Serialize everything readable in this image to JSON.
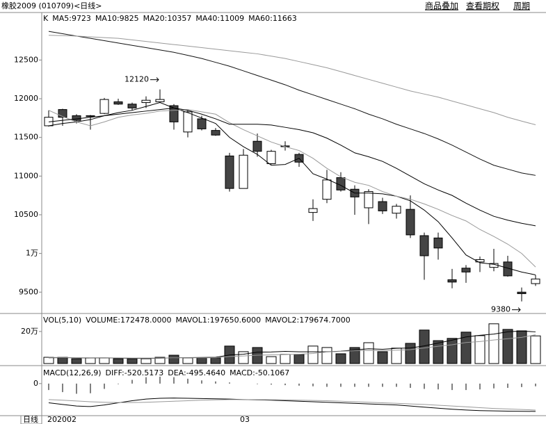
{
  "header": {
    "title": "橡胶2009 (010709)<日线>",
    "links": [
      "商品叠加",
      "查看期权",
      "周期"
    ]
  },
  "footer": {
    "period": "日线"
  },
  "chart_data": [
    {
      "type": "candlestick",
      "title": "K",
      "categories": [
        "202002",
        null,
        null,
        null,
        null,
        null,
        null,
        null,
        null,
        null,
        null,
        null,
        null,
        null,
        "03",
        null,
        null,
        null,
        null,
        null,
        null,
        null,
        null,
        null,
        null,
        null,
        null,
        null,
        null,
        null,
        null,
        null,
        null,
        null,
        null,
        null
      ],
      "open": [
        11650,
        11860,
        11780,
        11770,
        11810,
        11960,
        11930,
        11950,
        11960,
        11910,
        11570,
        11740,
        11590,
        11260,
        10840,
        11450,
        11160,
        11380,
        11280,
        10530,
        10700,
        10980,
        10830,
        10590,
        10670,
        10520,
        10570,
        10230,
        10200,
        9660,
        9810,
        9890,
        9820,
        9890,
        9500,
        9610
      ],
      "high": [
        11850,
        11870,
        11800,
        11790,
        12010,
        12000,
        11950,
        12030,
        12120,
        11930,
        11850,
        11780,
        11620,
        11300,
        11350,
        11550,
        11340,
        11450,
        11300,
        10700,
        11080,
        11050,
        10880,
        10830,
        10720,
        10640,
        10750,
        10270,
        10270,
        9800,
        9850,
        9960,
        10060,
        9970,
        9560,
        9720
      ],
      "low": [
        11640,
        11650,
        11680,
        11600,
        11800,
        11920,
        11850,
        11880,
        11950,
        11600,
        11500,
        11590,
        11520,
        10800,
        10840,
        11250,
        11150,
        11330,
        11120,
        10420,
        10650,
        10800,
        10500,
        10380,
        10510,
        10450,
        10200,
        9660,
        9920,
        9550,
        9620,
        9760,
        9770,
        9700,
        9380,
        9580
      ],
      "close": [
        11760,
        11760,
        11720,
        11780,
        11990,
        11930,
        11880,
        11980,
        11990,
        11700,
        11830,
        11610,
        11530,
        10840,
        11270,
        11320,
        11320,
        11390,
        11180,
        10580,
        10950,
        10820,
        10730,
        10800,
        10550,
        10610,
        10240,
        9970,
        10070,
        9630,
        9760,
        9920,
        9870,
        9710,
        9480,
        9670
      ],
      "up_color": "#ffffff",
      "down_color": "#444444",
      "series": [
        {
          "name": "MA5:9723",
          "color": "#000000",
          "values": [
            11650,
            11680,
            11700,
            11730,
            11780,
            11820,
            11850,
            11900,
            11950,
            11880,
            11820,
            11750,
            11680,
            11500,
            11380,
            11280,
            11140,
            11150,
            11230,
            11030,
            10960,
            10880,
            10780,
            10780,
            10770,
            10740,
            10680,
            10560,
            10410,
            10200,
            9980,
            9880,
            9860,
            9810,
            9760,
            9723
          ]
        },
        {
          "name": "MA10:9825",
          "color": "#999999",
          "values": [
            11850,
            11770,
            11700,
            11650,
            11700,
            11760,
            11790,
            11810,
            11840,
            11850,
            11860,
            11830,
            11800,
            11690,
            11600,
            11520,
            11440,
            11380,
            11330,
            11230,
            11100,
            10990,
            10920,
            10880,
            10800,
            10740,
            10700,
            10640,
            10570,
            10490,
            10420,
            10310,
            10220,
            10120,
            10000,
            9825
          ]
        },
        {
          "name": "MA20:10357",
          "color": "#000000",
          "values": [
            11700,
            11720,
            11740,
            11760,
            11780,
            11800,
            11820,
            11840,
            11860,
            11880,
            11850,
            11800,
            11740,
            11670,
            11670,
            11670,
            11660,
            11630,
            11600,
            11560,
            11490,
            11400,
            11300,
            11250,
            11190,
            11100,
            11000,
            10900,
            10820,
            10750,
            10650,
            10560,
            10480,
            10430,
            10390,
            10357
          ]
        },
        {
          "name": "MA40:11009",
          "color": "#111111",
          "values": [
            12870,
            12840,
            12810,
            12780,
            12750,
            12720,
            12690,
            12660,
            12630,
            12600,
            12560,
            12520,
            12470,
            12420,
            12360,
            12300,
            12240,
            12180,
            12110,
            12050,
            11990,
            11930,
            11870,
            11800,
            11740,
            11670,
            11610,
            11550,
            11480,
            11400,
            11310,
            11220,
            11140,
            11090,
            11040,
            11009
          ]
        },
        {
          "name": "MA60:11663",
          "color": "#999999",
          "values": [
            12820,
            12815,
            12810,
            12800,
            12790,
            12780,
            12760,
            12740,
            12720,
            12700,
            12680,
            12660,
            12640,
            12620,
            12600,
            12580,
            12550,
            12520,
            12480,
            12440,
            12400,
            12350,
            12300,
            12250,
            12200,
            12150,
            12100,
            12060,
            12020,
            11970,
            11920,
            11870,
            11820,
            11760,
            11710,
            11663
          ]
        }
      ],
      "ylim": [
        9233,
        13114
      ],
      "yticks": [
        12500,
        12000,
        11500,
        11000,
        10500,
        {
          "value": 10000,
          "label": "1万"
        },
        9500
      ]
    },
    {
      "type": "bar",
      "title": "VOL(5,10)",
      "value_label": "VOLUME:172478.0000",
      "values": [
        39000,
        39000,
        30000,
        35000,
        35000,
        30000,
        30000,
        30000,
        39000,
        52000,
        35000,
        35000,
        35000,
        109000,
        74000,
        100000,
        43000,
        57000,
        57000,
        109000,
        100000,
        61000,
        100000,
        130000,
        74000,
        96000,
        126000,
        209000,
        143000,
        157000,
        196000,
        174000,
        248000,
        213000,
        204000,
        172478
      ],
      "series": [
        {
          "name": "MAVOL1:197650.6000",
          "color": "#000000",
          "values": [
            36000,
            37000,
            36000,
            35000,
            36000,
            34000,
            32000,
            32000,
            33000,
            36000,
            37000,
            38000,
            39000,
            53000,
            58000,
            71000,
            72000,
            76000,
            73000,
            73000,
            73000,
            77000,
            85000,
            92000,
            89000,
            95000,
            97000,
            110000,
            128000,
            146000,
            166000,
            176000,
            184000,
            198000,
            203000,
            197650.6
          ]
        },
        {
          "name": "MAVOL2:179674.7000",
          "color": "#999999",
          "values": [
            38000,
            38000,
            37000,
            36000,
            36000,
            35000,
            34000,
            34000,
            34000,
            36000,
            36000,
            36000,
            36000,
            44000,
            47000,
            52000,
            54000,
            56000,
            58000,
            63000,
            72000,
            76000,
            80000,
            82000,
            81000,
            83000,
            87000,
            97000,
            108000,
            117000,
            131000,
            137000,
            147000,
            155000,
            163000,
            179674.7
          ]
        }
      ],
      "ylim": [
        0,
        308000
      ],
      "yticks": [
        {
          "value": 200000,
          "label": "20万"
        }
      ]
    },
    {
      "type": "macd",
      "title": "MACD(12,26,9)",
      "hist_label": "MACD:-50.1067",
      "hist_color": "#000000",
      "values": [
        -120,
        -160,
        -190,
        -180,
        -100,
        -10,
        70,
        120,
        130,
        120,
        90,
        60,
        40,
        20,
        0,
        -10,
        -20,
        -30,
        -40,
        -50,
        -60,
        -60,
        -60,
        -60,
        -60,
        -60,
        -80,
        -100,
        -110,
        -120,
        -120,
        -110,
        -90,
        -80,
        -66,
        -50.1067
      ],
      "series": [
        {
          "name": "DIFF:-520.5173",
          "color": "#000000",
          "values": [
            -360,
            -390,
            -420,
            -430,
            -400,
            -360,
            -320,
            -290,
            -275,
            -270,
            -275,
            -280,
            -285,
            -290,
            -300,
            -305,
            -310,
            -320,
            -330,
            -340,
            -350,
            -360,
            -370,
            -380,
            -390,
            -400,
            -420,
            -440,
            -460,
            -480,
            -495,
            -505,
            -510,
            -515,
            -518,
            -520.5173
          ]
        },
        {
          "name": "DEA:-495.4640",
          "color": "#999999",
          "values": [
            -300,
            -310,
            -325,
            -340,
            -350,
            -355,
            -355,
            -350,
            -340,
            -330,
            -320,
            -310,
            -305,
            -300,
            -300,
            -300,
            -302,
            -305,
            -310,
            -315,
            -320,
            -330,
            -340,
            -350,
            -360,
            -370,
            -380,
            -390,
            -405,
            -420,
            -435,
            -450,
            -465,
            -475,
            -485,
            -495.464
          ]
        }
      ],
      "ylim": [
        -600,
        310
      ],
      "yticks": [
        0
      ]
    }
  ]
}
